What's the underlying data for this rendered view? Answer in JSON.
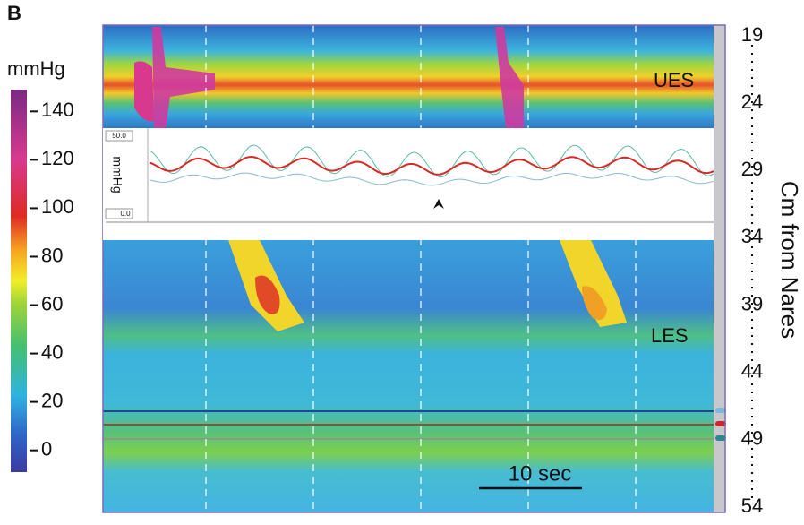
{
  "chart_data": {
    "type": "heatmap",
    "panel_label": "B",
    "colorbar_label": "mmHg",
    "colorbar_lim": [
      -9,
      149
    ],
    "colorbar_ticks": [
      0,
      20,
      40,
      60,
      80,
      100,
      120,
      140
    ],
    "y_label": "Cm from Nares",
    "ylim": [
      19,
      54
    ],
    "yticks": [
      19,
      24,
      29,
      34,
      39,
      44,
      49,
      54
    ],
    "y_inverted": true,
    "annotations": {
      "ues": "UES",
      "les": "LES",
      "inset_unit": "mmHg",
      "inset_max": "50.0",
      "inset_min": "0.0",
      "scale_bar": "10 sec"
    }
  }
}
